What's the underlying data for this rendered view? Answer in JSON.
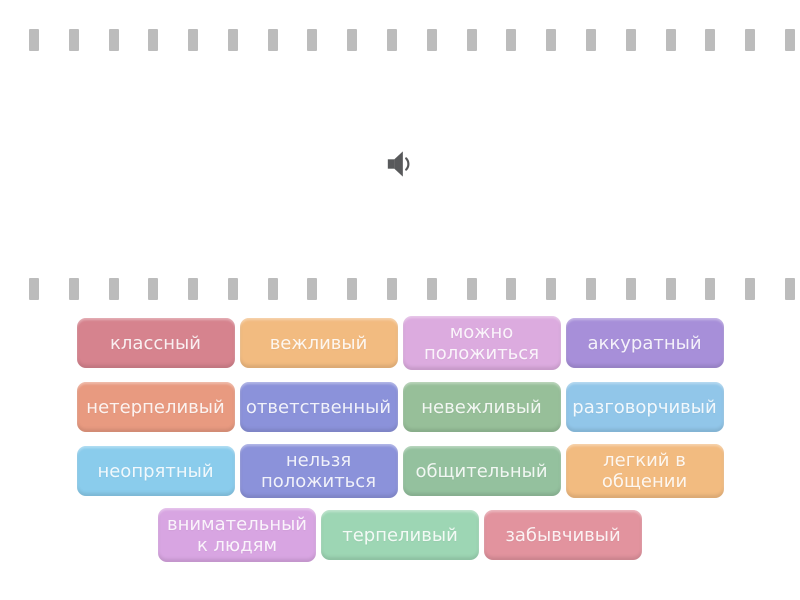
{
  "page": {
    "background": "#ffffff"
  },
  "filmstrip": {
    "block_color": "#bcbcbc",
    "block_count": 20
  },
  "audio_button": {
    "icon": "speaker-icon",
    "icon_color": "#58595b"
  },
  "tiles": {
    "text_color": "rgba(255,255,255,0.88)",
    "rows": [
      {
        "items": [
          {
            "label": "классный",
            "color": "#d6838e"
          },
          {
            "label": "вежливый",
            "color": "#f2bb80"
          },
          {
            "label": "можно\nположиться",
            "color": "#dcabdf"
          },
          {
            "label": "аккуратный",
            "color": "#a78fd9"
          }
        ]
      },
      {
        "items": [
          {
            "label": "нетерпеливый",
            "color": "#e89a80"
          },
          {
            "label": "ответственный",
            "color": "#8b92da"
          },
          {
            "label": "невежливый",
            "color": "#97bf99"
          },
          {
            "label": "разговорчивый",
            "color": "#91c6e9"
          }
        ]
      },
      {
        "items": [
          {
            "label": "неопрятный",
            "color": "#8accec"
          },
          {
            "label": "нельзя\nположиться",
            "color": "#8b92da"
          },
          {
            "label": "общительный",
            "color": "#94c19e"
          },
          {
            "label": "легкий в\nобщении",
            "color": "#f2bb80"
          }
        ]
      },
      {
        "items": [
          {
            "label": "внимательный\nк людям",
            "color": "#d8a5e2"
          },
          {
            "label": "терпеливый",
            "color": "#9dd6b4"
          },
          {
            "label": "забывчивый",
            "color": "#e2939e"
          }
        ]
      }
    ]
  }
}
